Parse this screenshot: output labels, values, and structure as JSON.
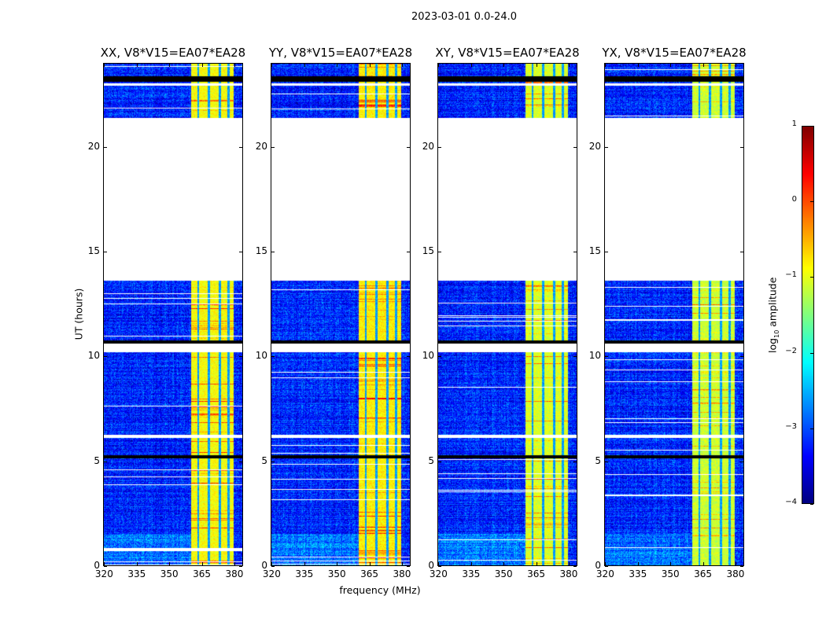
{
  "chart_data": {
    "type": "heatmap",
    "title": "2023-03-01 0.0-24.0",
    "xlabel": "frequency (MHz)",
    "ylabel": "UT (hours)",
    "xlim": [
      319.5,
      384
    ],
    "ylim": [
      0,
      24
    ],
    "xticks": [
      320,
      335,
      350,
      365,
      380
    ],
    "yticks": [
      0,
      5,
      10,
      15,
      20
    ],
    "panels": [
      {
        "title": "XX, V8*V15=EA07*EA28",
        "band_strength": 1.0
      },
      {
        "title": "YY, V8*V15=EA07*EA28",
        "band_strength": 1.1
      },
      {
        "title": "XY, V8*V15=EA07*EA28",
        "band_strength": 0.85
      },
      {
        "title": "YX, V8*V15=EA07*EA28",
        "band_strength": 0.8
      }
    ],
    "data_segments_hours": [
      [
        0.0,
        5.1
      ],
      [
        5.25,
        6.1
      ],
      [
        6.25,
        10.2
      ],
      [
        10.6,
        13.6
      ],
      [
        21.4,
        22.95
      ],
      [
        23.05,
        24.0
      ]
    ],
    "flagged_black_hours": [
      [
        5.1,
        5.25
      ],
      [
        23.15,
        23.4
      ],
      [
        10.6,
        10.75
      ]
    ],
    "bright_band_mhz": [
      360,
      380
    ],
    "band_gap_lines_mhz": [
      363.5,
      368.5,
      373.5,
      377.5
    ],
    "background_log10_amplitude": -3.2,
    "band_log10_amplitude": -0.9,
    "colorbar": {
      "label_main": "log",
      "label_sub": "10",
      "label_rest": " amplitude",
      "range": [
        -4,
        1
      ],
      "colormap": "jet",
      "ticks": [
        1,
        0,
        -1,
        -2,
        -3,
        -4
      ],
      "tick_labels": [
        "1",
        "0",
        "−1",
        "−2",
        "−3",
        "−4"
      ]
    }
  }
}
